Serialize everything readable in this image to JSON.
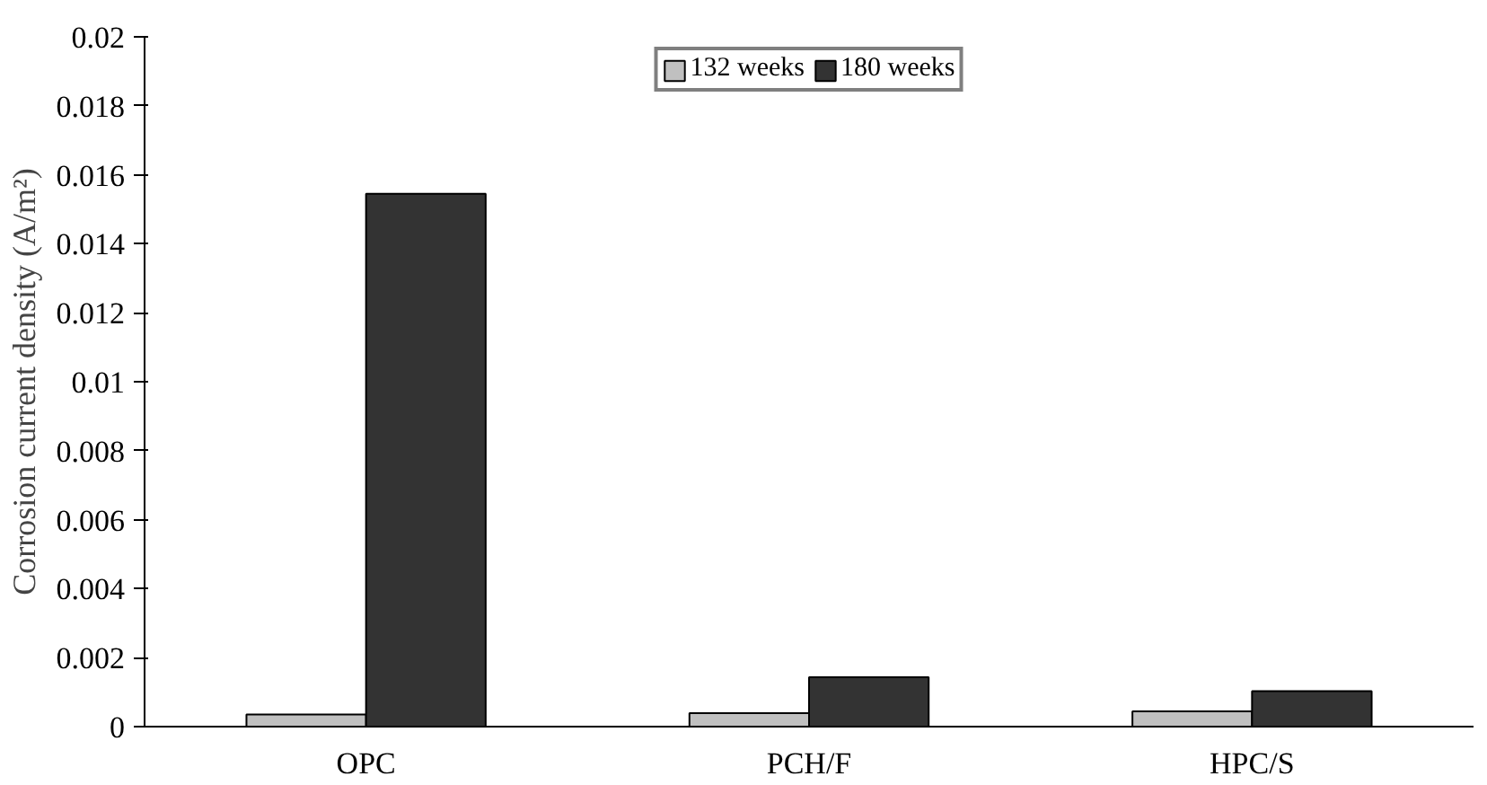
{
  "chart_data": {
    "type": "bar",
    "ylabel": "Corrosion current density (A/m²)",
    "categories": [
      "OPC",
      "PCH/F",
      "HPC/S"
    ],
    "series": [
      {
        "name": "132 weeks",
        "color": "#c0c0c0",
        "values": [
          0.00035,
          0.00039,
          0.00044
        ]
      },
      {
        "name": "180 weeks",
        "color": "#333333",
        "values": [
          0.01545,
          0.00143,
          0.00103
        ]
      }
    ],
    "ylim": [
      0,
      0.02
    ],
    "yticks": [
      0,
      0.002,
      0.004,
      0.006,
      0.008,
      0.01,
      0.012,
      0.014,
      0.016,
      0.018,
      0.02
    ],
    "grid": false,
    "legend": "top"
  }
}
